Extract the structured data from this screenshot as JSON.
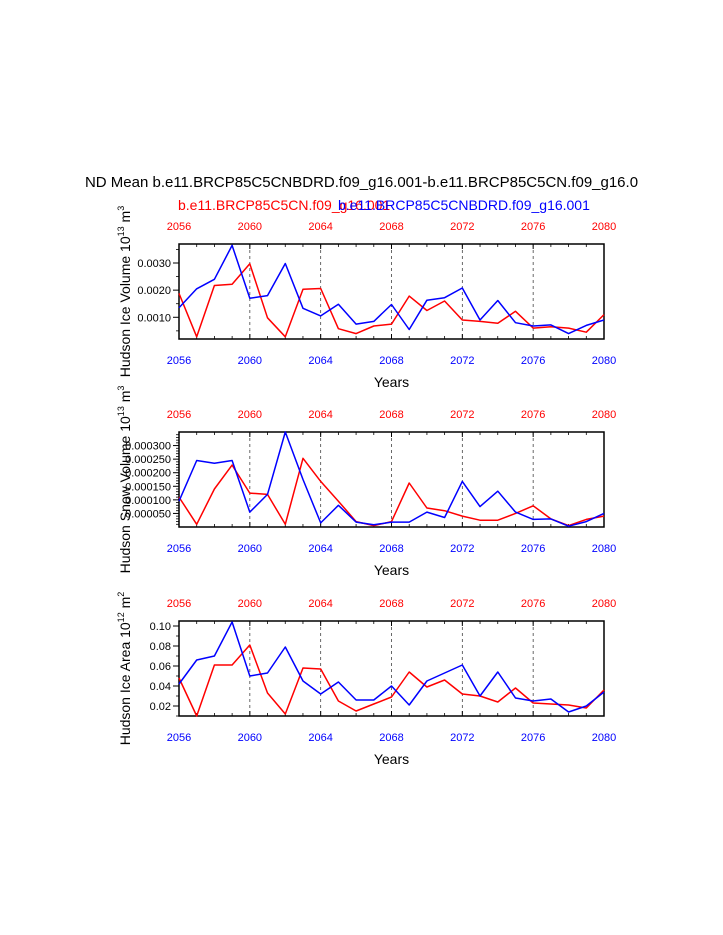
{
  "title": "ND Mean b.e11.BRCP85C5CNBDRD.f09_g16.001-b.e11.BRCP85C5CN.f09_g16.0",
  "legend": {
    "red_label": "b.e11.BRCP85C5CN.f09_g16.001",
    "blue_label": "b.e11.BRCP85C5CNBDRD.f09_g16.001"
  },
  "colors": {
    "red": "#ff0000",
    "blue": "#0000ff",
    "axis": "#000000",
    "grid": "#444444"
  },
  "chart_data": [
    {
      "type": "line",
      "ylabel": "Hudson Ice Volume 10",
      "ylabel_exp": "13",
      "ylabel_unit": " m",
      "ylabel_unit_exp": "3",
      "xlabel": "Years",
      "xlim": [
        2056,
        2080
      ],
      "ylim": [
        0.0002,
        0.0037
      ],
      "xticks": [
        2056,
        2060,
        2064,
        2068,
        2072,
        2076,
        2080
      ],
      "xtick_labels": [
        "2056",
        "2060",
        "2064",
        "2068",
        "2072",
        "2076",
        "2080"
      ],
      "yticks": [
        0.001,
        0.002,
        0.003
      ],
      "ytick_labels": [
        "0.0010",
        "0.0020",
        "0.0030"
      ],
      "yminor": [
        0.0005,
        0.0015,
        0.0025,
        0.0035
      ],
      "grid_x": [
        2060,
        2064,
        2068,
        2072,
        2076
      ],
      "x": [
        2056,
        2057,
        2058,
        2059,
        2060,
        2061,
        2062,
        2063,
        2064,
        2065,
        2066,
        2067,
        2068,
        2069,
        2070,
        2071,
        2072,
        2073,
        2074,
        2075,
        2076,
        2077,
        2078,
        2079,
        2080
      ],
      "series": [
        {
          "name": "b.e11.BRCP85C5CN.f09_g16.001",
          "color": "#ff0000",
          "values": [
            0.00188,
            0.00028,
            0.00217,
            0.00222,
            0.00297,
            0.00098,
            0.00028,
            0.00203,
            0.00206,
            0.00058,
            0.0004,
            0.00068,
            0.00075,
            0.00178,
            0.00125,
            0.0016,
            0.0009,
            0.00085,
            0.00078,
            0.00122,
            0.0006,
            0.00065,
            0.0006,
            0.00045,
            0.0011
          ]
        },
        {
          "name": "b.e11.BRCP85C5CNBDRD.f09_g16.001",
          "color": "#0000ff",
          "values": [
            0.00135,
            0.00205,
            0.0024,
            0.00365,
            0.0017,
            0.0018,
            0.00298,
            0.00133,
            0.00105,
            0.00148,
            0.00075,
            0.00085,
            0.00147,
            0.00055,
            0.00163,
            0.00172,
            0.00208,
            0.0009,
            0.00162,
            0.0008,
            0.00068,
            0.00072,
            0.0004,
            0.0007,
            0.0009
          ]
        }
      ]
    },
    {
      "type": "line",
      "ylabel": "Hudson Snow Volume 10",
      "ylabel_exp": "13",
      "ylabel_unit": " m",
      "ylabel_unit_exp": "3",
      "xlabel": "Years",
      "xlim": [
        2056,
        2080
      ],
      "ylim": [
        0.0,
        0.00035
      ],
      "xticks": [
        2056,
        2060,
        2064,
        2068,
        2072,
        2076,
        2080
      ],
      "xtick_labels": [
        "2056",
        "2060",
        "2064",
        "2068",
        "2072",
        "2076",
        "2080"
      ],
      "yticks": [
        5e-05,
        0.0001,
        0.00015,
        0.0002,
        0.00025,
        0.0003
      ],
      "ytick_labels": [
        "0.000050",
        "0.000100",
        "0.000150",
        "0.000200",
        "0.000250",
        "0.000300"
      ],
      "yminor": [
        1e-05,
        2e-05,
        3e-05,
        4e-05,
        6e-05,
        7e-05,
        8e-05,
        9e-05,
        0.00011,
        0.00012,
        0.00013,
        0.00014,
        0.00016,
        0.00017,
        0.00018,
        0.00019,
        0.00021,
        0.00022,
        0.00023,
        0.00024,
        0.00026,
        0.00027,
        0.00028,
        0.00029,
        0.00031,
        0.00032,
        0.00033,
        0.00034
      ],
      "grid_x": [
        2060,
        2064,
        2068,
        2072,
        2076
      ],
      "x": [
        2056,
        2057,
        2058,
        2059,
        2060,
        2061,
        2062,
        2063,
        2064,
        2065,
        2066,
        2067,
        2068,
        2069,
        2070,
        2071,
        2072,
        2073,
        2074,
        2075,
        2076,
        2077,
        2078,
        2079,
        2080
      ],
      "series": [
        {
          "name": "b.e11.BRCP85C5CN.f09_g16.001",
          "color": "#ff0000",
          "values": [
            0.00011,
            1e-05,
            0.00014,
            0.000228,
            0.000125,
            0.00012,
            1e-05,
            0.000253,
            0.000168,
            9.5e-05,
            2e-05,
            5e-06,
            2e-05,
            0.000162,
            7e-05,
            6e-05,
            4e-05,
            2.5e-05,
            2.5e-05,
            5e-05,
            7.8e-05,
            3e-05,
            5e-06,
            2.8e-05,
            4e-05
          ]
        },
        {
          "name": "b.e11.BRCP85C5CNBDRD.f09_g16.001",
          "color": "#0000ff",
          "values": [
            9.5e-05,
            0.000245,
            0.000235,
            0.000245,
            5.5e-05,
            0.00012,
            0.00035,
            0.000175,
            1.5e-05,
            8e-05,
            1.8e-05,
            8e-06,
            1.8e-05,
            1.8e-05,
            5.5e-05,
            3.5e-05,
            0.000168,
            7.5e-05,
            0.000132,
            5.5e-05,
            2.8e-05,
            3e-05,
            3e-06,
            2e-05,
            5e-05
          ]
        }
      ]
    },
    {
      "type": "line",
      "ylabel": "Hudson Ice Area 10",
      "ylabel_exp": "12",
      "ylabel_unit": " m",
      "ylabel_unit_exp": "2",
      "xlabel": "Years",
      "xlim": [
        2056,
        2080
      ],
      "ylim": [
        0.01,
        0.105
      ],
      "xticks": [
        2056,
        2060,
        2064,
        2068,
        2072,
        2076,
        2080
      ],
      "xtick_labels": [
        "2056",
        "2060",
        "2064",
        "2068",
        "2072",
        "2076",
        "2080"
      ],
      "yticks": [
        0.02,
        0.04,
        0.06,
        0.08,
        0.1
      ],
      "ytick_labels": [
        "0.02",
        "0.04",
        "0.06",
        "0.08",
        "0.10"
      ],
      "yminor": [
        0.01,
        0.03,
        0.05,
        0.07,
        0.09
      ],
      "grid_x": [
        2060,
        2064,
        2068,
        2072,
        2076
      ],
      "x": [
        2056,
        2057,
        2058,
        2059,
        2060,
        2061,
        2062,
        2063,
        2064,
        2065,
        2066,
        2067,
        2068,
        2069,
        2070,
        2071,
        2072,
        2073,
        2074,
        2075,
        2076,
        2077,
        2078,
        2079,
        2080
      ],
      "series": [
        {
          "name": "b.e11.BRCP85C5CN.f09_g16.001",
          "color": "#ff0000",
          "values": [
            0.048,
            0.01,
            0.061,
            0.061,
            0.081,
            0.033,
            0.012,
            0.058,
            0.057,
            0.025,
            0.015,
            0.022,
            0.029,
            0.054,
            0.039,
            0.046,
            0.032,
            0.03,
            0.024,
            0.038,
            0.023,
            0.022,
            0.021,
            0.018,
            0.036
          ]
        },
        {
          "name": "b.e11.BRCP85C5CNBDRD.f09_g16.001",
          "color": "#0000ff",
          "values": [
            0.042,
            0.066,
            0.07,
            0.104,
            0.05,
            0.053,
            0.079,
            0.045,
            0.032,
            0.044,
            0.026,
            0.026,
            0.04,
            0.021,
            0.045,
            0.053,
            0.061,
            0.03,
            0.054,
            0.028,
            0.025,
            0.027,
            0.014,
            0.02,
            0.034
          ]
        }
      ]
    }
  ]
}
